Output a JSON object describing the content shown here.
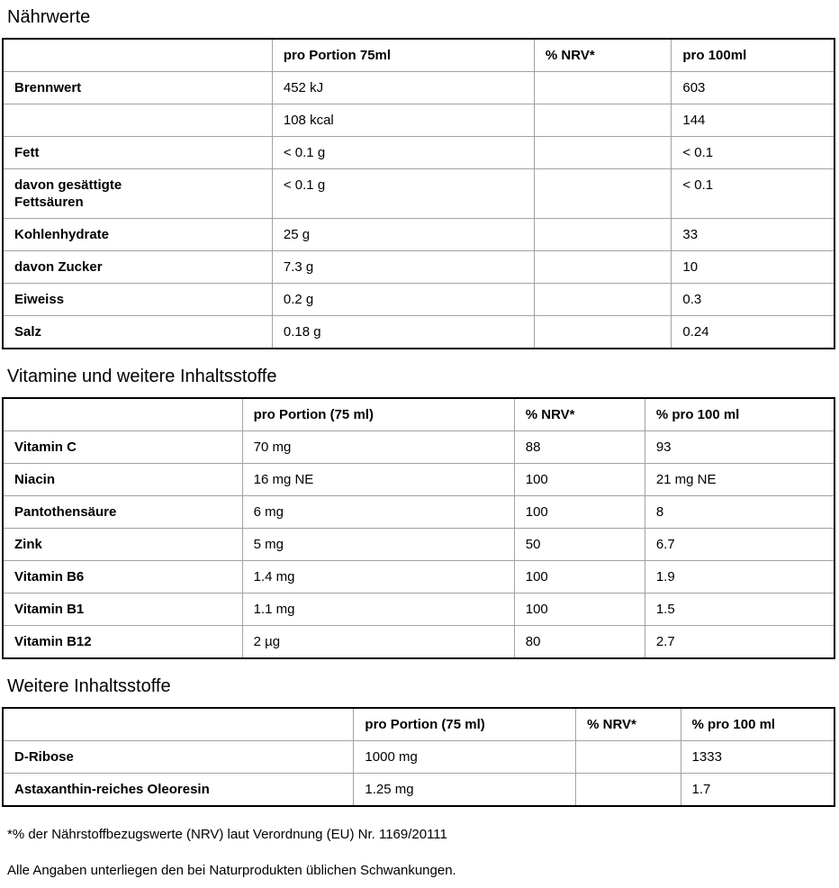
{
  "page": {
    "text_color": "#000000",
    "outer_border_color": "#000000",
    "inner_border_color": "#a2a2a2",
    "sections": [
      {
        "title": "Nährwerte",
        "headers": [
          "",
          "pro Portion 75ml",
          "% NRV*",
          "pro 100ml"
        ],
        "rows": [
          [
            "Brennwert",
            "452 kJ",
            "",
            "603"
          ],
          [
            "",
            "108 kcal",
            "",
            "144"
          ],
          [
            "Fett",
            "< 0.1 g",
            "",
            "< 0.1"
          ],
          [
            "davon gesättigte\nFettsäuren",
            "< 0.1 g",
            "",
            "< 0.1"
          ],
          [
            "Kohlenhydrate",
            "25 g",
            "",
            "33"
          ],
          [
            "davon Zucker",
            "7.3 g",
            "",
            "10"
          ],
          [
            "Eiweiss",
            "0.2 g",
            "",
            "0.3"
          ],
          [
            "Salz",
            "0.18 g",
            "",
            "0.24"
          ]
        ]
      },
      {
        "title": "Vitamine und weitere Inhaltsstoffe",
        "headers": [
          "",
          "pro Portion (75 ml)",
          "% NRV*",
          "% pro 100 ml"
        ],
        "rows": [
          [
            "Vitamin C",
            "70 mg",
            "88",
            "93"
          ],
          [
            "Niacin",
            "16 mg NE",
            "100",
            "21 mg NE"
          ],
          [
            "Pantothensäure",
            "6 mg",
            "100",
            "8"
          ],
          [
            "Zink",
            "5 mg",
            "50",
            "6.7"
          ],
          [
            "Vitamin B6",
            "1.4 mg",
            "100",
            "1.9"
          ],
          [
            "Vitamin B1",
            "1.1 mg",
            "100",
            "1.5"
          ],
          [
            "Vitamin B12",
            "2 µg",
            "80",
            "2.7"
          ]
        ]
      },
      {
        "title": "Weitere Inhaltsstoffe",
        "headers": [
          "",
          "pro Portion (75 ml)",
          "% NRV*",
          "% pro 100 ml"
        ],
        "rows": [
          [
            "D-Ribose",
            "1000 mg",
            "",
            "1333"
          ],
          [
            "Astaxanthin-reiches Oleoresin",
            "1.25 mg",
            "",
            "1.7"
          ]
        ]
      }
    ],
    "footnotes": [
      "*% der Nährstoffbezugswerte (NRV) laut Verordnung (EU) Nr. 1169/20111",
      "Alle Angaben unterliegen den bei Naturprodukten üblichen Schwankungen."
    ]
  }
}
